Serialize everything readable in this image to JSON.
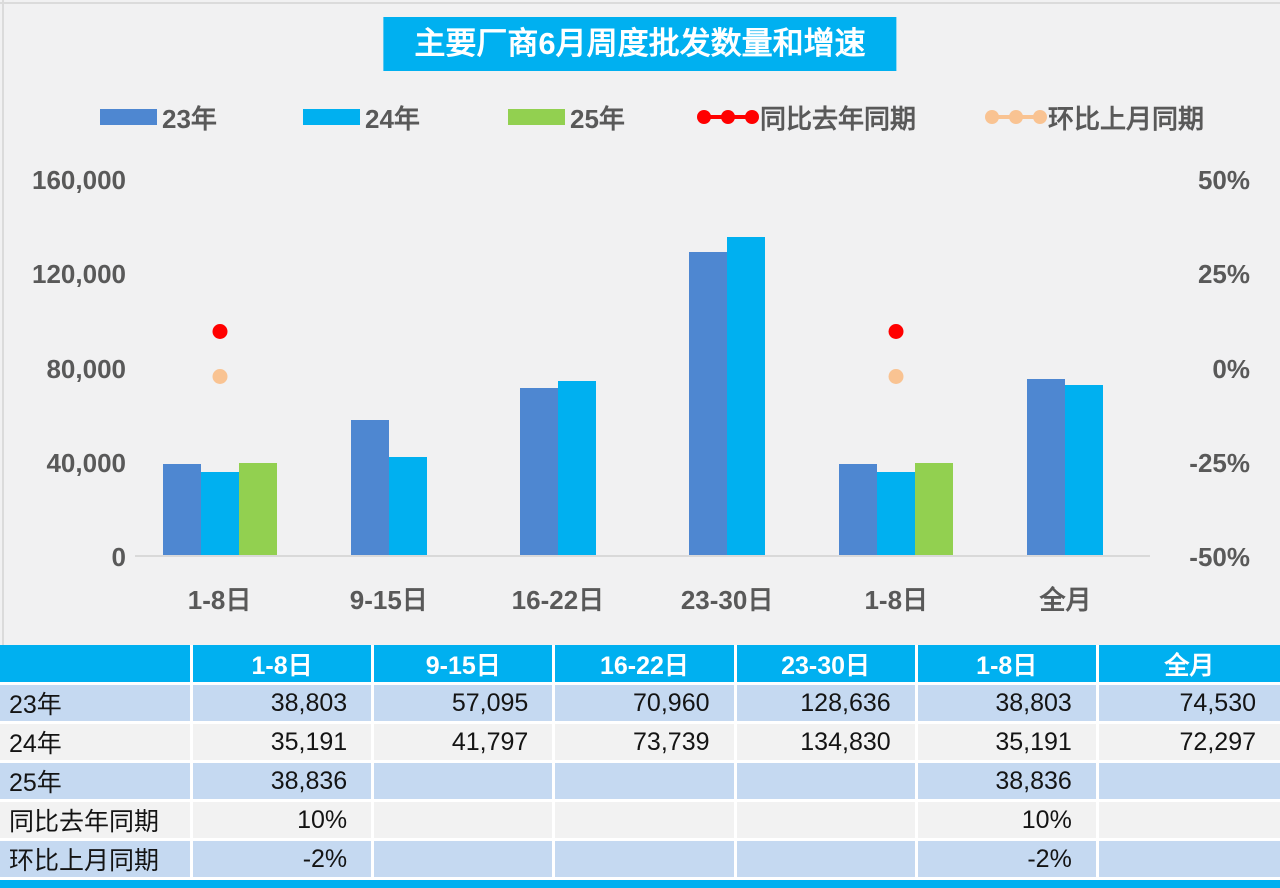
{
  "title": "主要厂商6月周度批发数量和增速",
  "chart_data": {
    "type": "bar",
    "title": "主要厂商6月周度批发数量和增速",
    "categories": [
      "1-8日",
      "9-15日",
      "16-22日",
      "23-30日",
      "1-8日",
      "全月"
    ],
    "series": [
      {
        "name": "23年",
        "kind": "bar",
        "color": "#4E87D1",
        "axis": "left",
        "values": [
          38803,
          57095,
          70960,
          128636,
          38803,
          74530
        ]
      },
      {
        "name": "24年",
        "kind": "bar",
        "color": "#00B0F0",
        "axis": "left",
        "values": [
          35191,
          41797,
          73739,
          134830,
          35191,
          72297
        ]
      },
      {
        "name": "25年",
        "kind": "bar",
        "color": "#92D050",
        "axis": "left",
        "values": [
          38836,
          null,
          null,
          null,
          38836,
          null
        ]
      },
      {
        "name": "同比去年同期",
        "kind": "point",
        "color": "#FF0000",
        "axis": "right",
        "values": [
          10,
          null,
          null,
          null,
          10,
          null
        ]
      },
      {
        "name": "环比上月同期",
        "kind": "point",
        "color": "#F9C392",
        "axis": "right",
        "values": [
          -2,
          null,
          null,
          null,
          -2,
          null
        ]
      }
    ],
    "left_axis": {
      "min": 0,
      "max": 160000,
      "tick_labels": [
        "160,000",
        "120,000",
        "80,000",
        "40,000",
        "0"
      ]
    },
    "right_axis": {
      "min": -50,
      "max": 50,
      "tick_labels": [
        "50%",
        "25%",
        "0%",
        "-25%",
        "-50%"
      ]
    },
    "legend_position": "top",
    "grid": false
  },
  "table": {
    "headers": [
      "",
      "1-8日",
      "9-15日",
      "16-22日",
      "23-30日",
      "1-8日",
      "全月"
    ],
    "rows": [
      {
        "label": "23年",
        "cells": [
          "38,803",
          "57,095",
          "70,960",
          "128,636",
          "38,803",
          "74,530"
        ]
      },
      {
        "label": "24年",
        "cells": [
          "35,191",
          "41,797",
          "73,739",
          "134,830",
          "35,191",
          "72,297"
        ]
      },
      {
        "label": "25年",
        "cells": [
          "38,836",
          "",
          "",
          "",
          "38,836",
          ""
        ]
      },
      {
        "label": "同比去年同期",
        "cells": [
          "10%",
          "",
          "",
          "",
          "10%",
          ""
        ]
      },
      {
        "label": "环比上月同期",
        "cells": [
          "-2%",
          "",
          "",
          "",
          "-2%",
          ""
        ]
      }
    ]
  },
  "colors": {
    "accent_cyan": "#00B0F0",
    "bar_blue": "#4E87D1",
    "bar_cyan": "#00B0F0",
    "bar_green": "#92D050",
    "line_red": "#FF0000",
    "line_peach": "#F9C392",
    "row_light_blue": "#C5D9F1",
    "row_light_gray": "#F2F2F2",
    "axis_text": "#595959",
    "background": "#F1F1F2"
  }
}
